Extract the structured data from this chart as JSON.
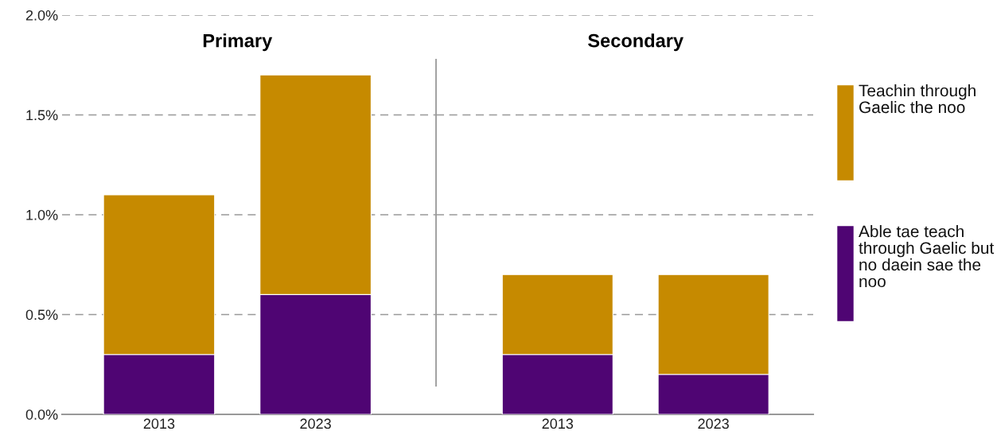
{
  "chart_data": [
    {
      "type": "bar",
      "title": "Primary",
      "categories": [
        "2013",
        "2023"
      ],
      "stacked": true,
      "series": [
        {
          "color": "#4f0573",
          "values": [
            0.3,
            0.6
          ]
        },
        {
          "color": "#c68a00",
          "values": [
            0.8,
            1.1
          ]
        }
      ],
      "ylim": [
        0,
        2
      ],
      "yticks": [
        {
          "value": 0,
          "label": "0.0%"
        },
        {
          "value": 0.5,
          "label": "0.5%"
        },
        {
          "value": 1,
          "label": "1.0%"
        },
        {
          "value": 1.5,
          "label": "1.5%"
        },
        {
          "value": 2,
          "label": "2.0%"
        }
      ],
      "grid": "y"
    },
    {
      "type": "bar",
      "title": "Secondary",
      "categories": [
        "2013",
        "2023"
      ],
      "stacked": true,
      "series": [
        {
          "name": "Able tae teach through Gaelic but no daein sae the noo",
          "color": "#4f0573",
          "values": [
            0.3,
            0.2
          ]
        },
        {
          "name": "Teachin through Gaelic the noo",
          "color": "#c68a00",
          "values": [
            0.4,
            0.5
          ]
        }
      ],
      "ylim": [
        0,
        2
      ],
      "yticks": [
        0,
        0.5,
        1,
        1.5,
        2
      ],
      "grid": "y",
      "legend": "right",
      "tick_labels": "x"
    }
  ]
}
